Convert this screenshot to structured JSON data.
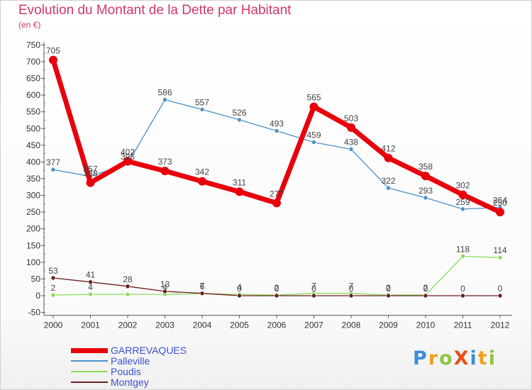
{
  "title": "Evolution du Montant de la Dette par Habitant",
  "subtitle": "(en €)",
  "logo": {
    "text": "ProXiti",
    "colors": [
      "#3b8ed8",
      "#f0a021",
      "#8cc63f",
      "#e94e1b",
      "#3b8ed8",
      "#f0a021",
      "#8cc63f"
    ]
  },
  "chart_data": {
    "type": "line",
    "title": "Evolution du Montant de la Dette par Habitant",
    "subtitle": "(en €)",
    "xlabel": "",
    "ylabel": "",
    "categories": [
      "2000",
      "2001",
      "2002",
      "2003",
      "2004",
      "2005",
      "2006",
      "2007",
      "2008",
      "2009",
      "2010",
      "2011",
      "2012"
    ],
    "yticks": [
      -50,
      0,
      50,
      100,
      150,
      200,
      250,
      300,
      350,
      400,
      450,
      500,
      550,
      600,
      650,
      700,
      750
    ],
    "ylim": [
      -50,
      750
    ],
    "grid": false,
    "legend_position": "bottom-left",
    "series": [
      {
        "name": "GARREVAQUES",
        "color": "#e8000b",
        "values": [
          705,
          338,
          402,
          373,
          342,
          311,
          277,
          565,
          503,
          412,
          358,
          302,
          250
        ],
        "labels": [
          "705",
          "338",
          "402",
          "373",
          "342",
          "311",
          "277",
          "565",
          "503",
          "412",
          "358",
          "302",
          "250"
        ]
      },
      {
        "name": "Palleville",
        "color": "#4a90c8",
        "values": [
          377,
          357,
          395,
          586,
          557,
          526,
          493,
          459,
          438,
          322,
          293,
          259,
          264
        ],
        "labels": [
          "377",
          "357",
          "395",
          "586",
          "557",
          "526",
          "493",
          "459",
          "438",
          "322",
          "293",
          "259",
          "264"
        ]
      },
      {
        "name": "Poudis",
        "color": "#8edc5a",
        "values": [
          2,
          4,
          4,
          4,
          6,
          4,
          2,
          7,
          7,
          2,
          2,
          118,
          114
        ],
        "labels": [
          "2",
          "4",
          "",
          "4",
          "6",
          "4",
          "2",
          "7",
          "7",
          "2",
          "2",
          "118",
          "114"
        ]
      },
      {
        "name": "Montgey",
        "color": "#6b1e1e",
        "values": [
          53,
          41,
          28,
          13,
          7,
          0,
          0,
          0,
          0,
          0,
          0,
          0,
          0
        ],
        "labels": [
          "53",
          "41",
          "28",
          "13",
          "7",
          "0",
          "0",
          "0",
          "0",
          "0",
          "0",
          "0",
          "0"
        ]
      }
    ]
  }
}
